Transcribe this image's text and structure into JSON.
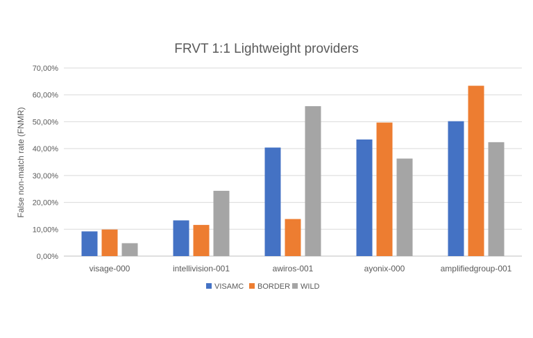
{
  "chart_data": {
    "type": "bar",
    "title": "FRVT 1:1 Lightweight providers",
    "xlabel": "",
    "ylabel": "False non-match rate (FNMR)",
    "categories": [
      "visage-000",
      "intellivision-001",
      "awiros-001",
      "ayonix-000",
      "amplifiedgroup-001"
    ],
    "series": [
      {
        "name": "VISAMC",
        "color": "#4472C4",
        "values": [
          9.2,
          13.3,
          40.4,
          43.4,
          50.2
        ]
      },
      {
        "name": "BORDER",
        "color": "#ED7D31",
        "values": [
          9.9,
          11.6,
          13.8,
          49.7,
          63.4
        ]
      },
      {
        "name": "WILD",
        "color": "#A5A5A5",
        "values": [
          4.8,
          24.3,
          55.8,
          36.3,
          42.4
        ]
      }
    ],
    "ylim": [
      0,
      70
    ],
    "yticks": [
      "0,00%",
      "10,00%",
      "20,00%",
      "30,00%",
      "40,00%",
      "50,00%",
      "60,00%",
      "70,00%"
    ],
    "grid": true,
    "legend_position": "bottom"
  }
}
